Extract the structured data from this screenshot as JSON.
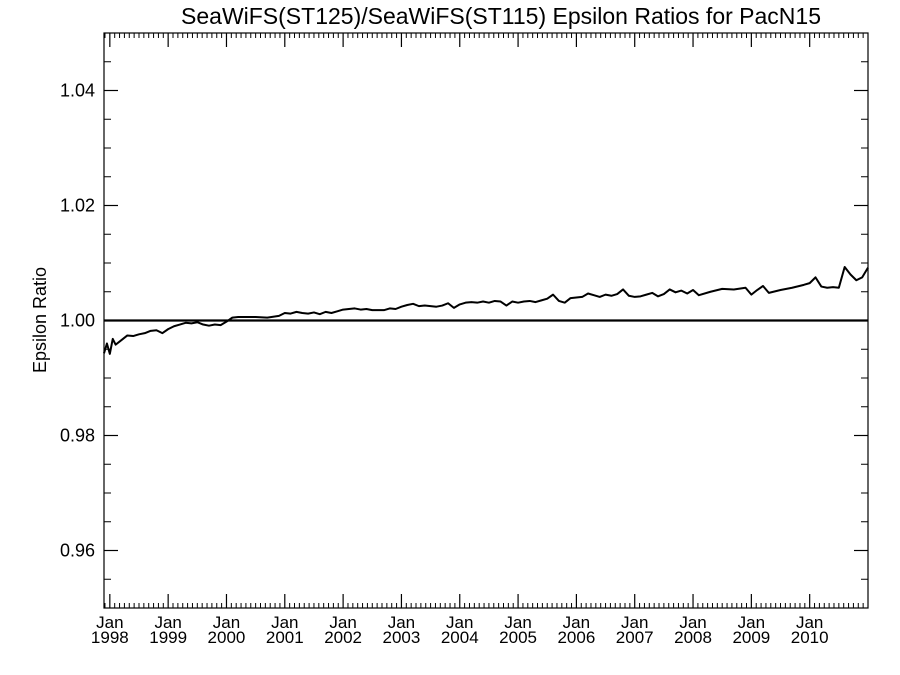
{
  "chart_data": {
    "type": "line",
    "title": "SeaWiFS(ST125)/SeaWiFS(ST115)  Epsilon Ratios for PacN15",
    "ylabel": "Epsilon Ratio",
    "xlabel": "",
    "xlim": [
      1997.9,
      2011.0
    ],
    "ylim": [
      0.95,
      1.05
    ],
    "yticks": [
      0.96,
      0.98,
      1.0,
      1.02,
      1.04
    ],
    "ytick_labels": [
      "0.96",
      "0.98",
      "1.00",
      "1.02",
      "1.04"
    ],
    "xticks": [
      {
        "value": 1998,
        "month": "Jan",
        "year": "1998"
      },
      {
        "value": 1999,
        "month": "Jan",
        "year": "1999"
      },
      {
        "value": 2000,
        "month": "Jan",
        "year": "2000"
      },
      {
        "value": 2001,
        "month": "Jan",
        "year": "2001"
      },
      {
        "value": 2002,
        "month": "Jan",
        "year": "2002"
      },
      {
        "value": 2003,
        "month": "Jan",
        "year": "2003"
      },
      {
        "value": 2004,
        "month": "Jan",
        "year": "2004"
      },
      {
        "value": 2005,
        "month": "Jan",
        "year": "2005"
      },
      {
        "value": 2006,
        "month": "Jan",
        "year": "2006"
      },
      {
        "value": 2007,
        "month": "Jan",
        "year": "2007"
      },
      {
        "value": 2008,
        "month": "Jan",
        "year": "2008"
      },
      {
        "value": 2009,
        "month": "Jan",
        "year": "2009"
      },
      {
        "value": 2010,
        "month": "Jan",
        "year": "2010"
      }
    ],
    "reference_line": 1.0,
    "grid": false,
    "series": [
      {
        "x": [
          1997.9,
          1997.95,
          1998.0,
          1998.05,
          1998.1,
          1998.2,
          1998.3,
          1998.4,
          1998.5,
          1998.6,
          1998.7,
          1998.8,
          1998.9,
          1999.0,
          1999.1,
          1999.2,
          1999.3,
          1999.4,
          1999.5,
          1999.6,
          1999.7,
          1999.8,
          1999.9,
          2000.0,
          2000.1,
          2000.2,
          2000.3,
          2000.5,
          2000.7,
          2000.9,
          2001.0,
          2001.1,
          2001.2,
          2001.3,
          2001.4,
          2001.5,
          2001.6,
          2001.7,
          2001.8,
          2001.9,
          2002.0,
          2002.1,
          2002.2,
          2002.3,
          2002.4,
          2002.5,
          2002.6,
          2002.7,
          2002.8,
          2002.9,
          2003.0,
          2003.1,
          2003.2,
          2003.3,
          2003.4,
          2003.5,
          2003.6,
          2003.7,
          2003.8,
          2003.9,
          2004.0,
          2004.1,
          2004.2,
          2004.3,
          2004.4,
          2004.5,
          2004.6,
          2004.7,
          2004.8,
          2004.9,
          2005.0,
          2005.1,
          2005.2,
          2005.3,
          2005.4,
          2005.5,
          2005.6,
          2005.7,
          2005.8,
          2005.9,
          2006.0,
          2006.1,
          2006.2,
          2006.3,
          2006.4,
          2006.5,
          2006.6,
          2006.7,
          2006.8,
          2006.9,
          2007.0,
          2007.1,
          2007.2,
          2007.3,
          2007.4,
          2007.5,
          2007.6,
          2007.7,
          2007.8,
          2007.9,
          2008.0,
          2008.1,
          2008.3,
          2008.5,
          2008.7,
          2008.9,
          2009.0,
          2009.1,
          2009.2,
          2009.3,
          2009.5,
          2009.7,
          2009.9,
          2010.0,
          2010.1,
          2010.2,
          2010.3,
          2010.4,
          2010.5,
          2010.6,
          2010.7,
          2010.8,
          2010.9,
          2011.0
        ],
        "values": [
          0.9943,
          0.996,
          0.9942,
          0.9968,
          0.9958,
          0.9966,
          0.9974,
          0.9973,
          0.9976,
          0.9978,
          0.9982,
          0.9983,
          0.9978,
          0.9985,
          0.999,
          0.9993,
          0.9996,
          0.9995,
          0.9997,
          0.9993,
          0.9991,
          0.9993,
          0.9992,
          0.9998,
          1.0005,
          1.0006,
          1.0006,
          1.0006,
          1.0005,
          1.0008,
          1.0013,
          1.0012,
          1.0015,
          1.0013,
          1.0012,
          1.0014,
          1.0011,
          1.0015,
          1.0013,
          1.0016,
          1.0019,
          1.002,
          1.0021,
          1.0019,
          1.002,
          1.0018,
          1.0018,
          1.0018,
          1.0021,
          1.002,
          1.0024,
          1.0027,
          1.0029,
          1.0025,
          1.0026,
          1.0025,
          1.0024,
          1.0026,
          1.003,
          1.0022,
          1.0028,
          1.0031,
          1.0032,
          1.0031,
          1.0033,
          1.0031,
          1.0034,
          1.0033,
          1.0026,
          1.0033,
          1.0031,
          1.0033,
          1.0034,
          1.0032,
          1.0035,
          1.0038,
          1.0045,
          1.0034,
          1.0031,
          1.0039,
          1.004,
          1.0041,
          1.0047,
          1.0044,
          1.0041,
          1.0045,
          1.0043,
          1.0046,
          1.0054,
          1.0043,
          1.0041,
          1.0042,
          1.0045,
          1.0048,
          1.0042,
          1.0046,
          1.0054,
          1.0049,
          1.0052,
          1.0047,
          1.0053,
          1.0044,
          1.005,
          1.0055,
          1.0054,
          1.0057,
          1.0045,
          1.0053,
          1.006,
          1.0048,
          1.0053,
          1.0057,
          1.0062,
          1.0065,
          1.0075,
          1.0059,
          1.0057,
          1.0058,
          1.0057,
          1.0093,
          1.008,
          1.007,
          1.0075,
          1.0092
        ]
      }
    ]
  }
}
